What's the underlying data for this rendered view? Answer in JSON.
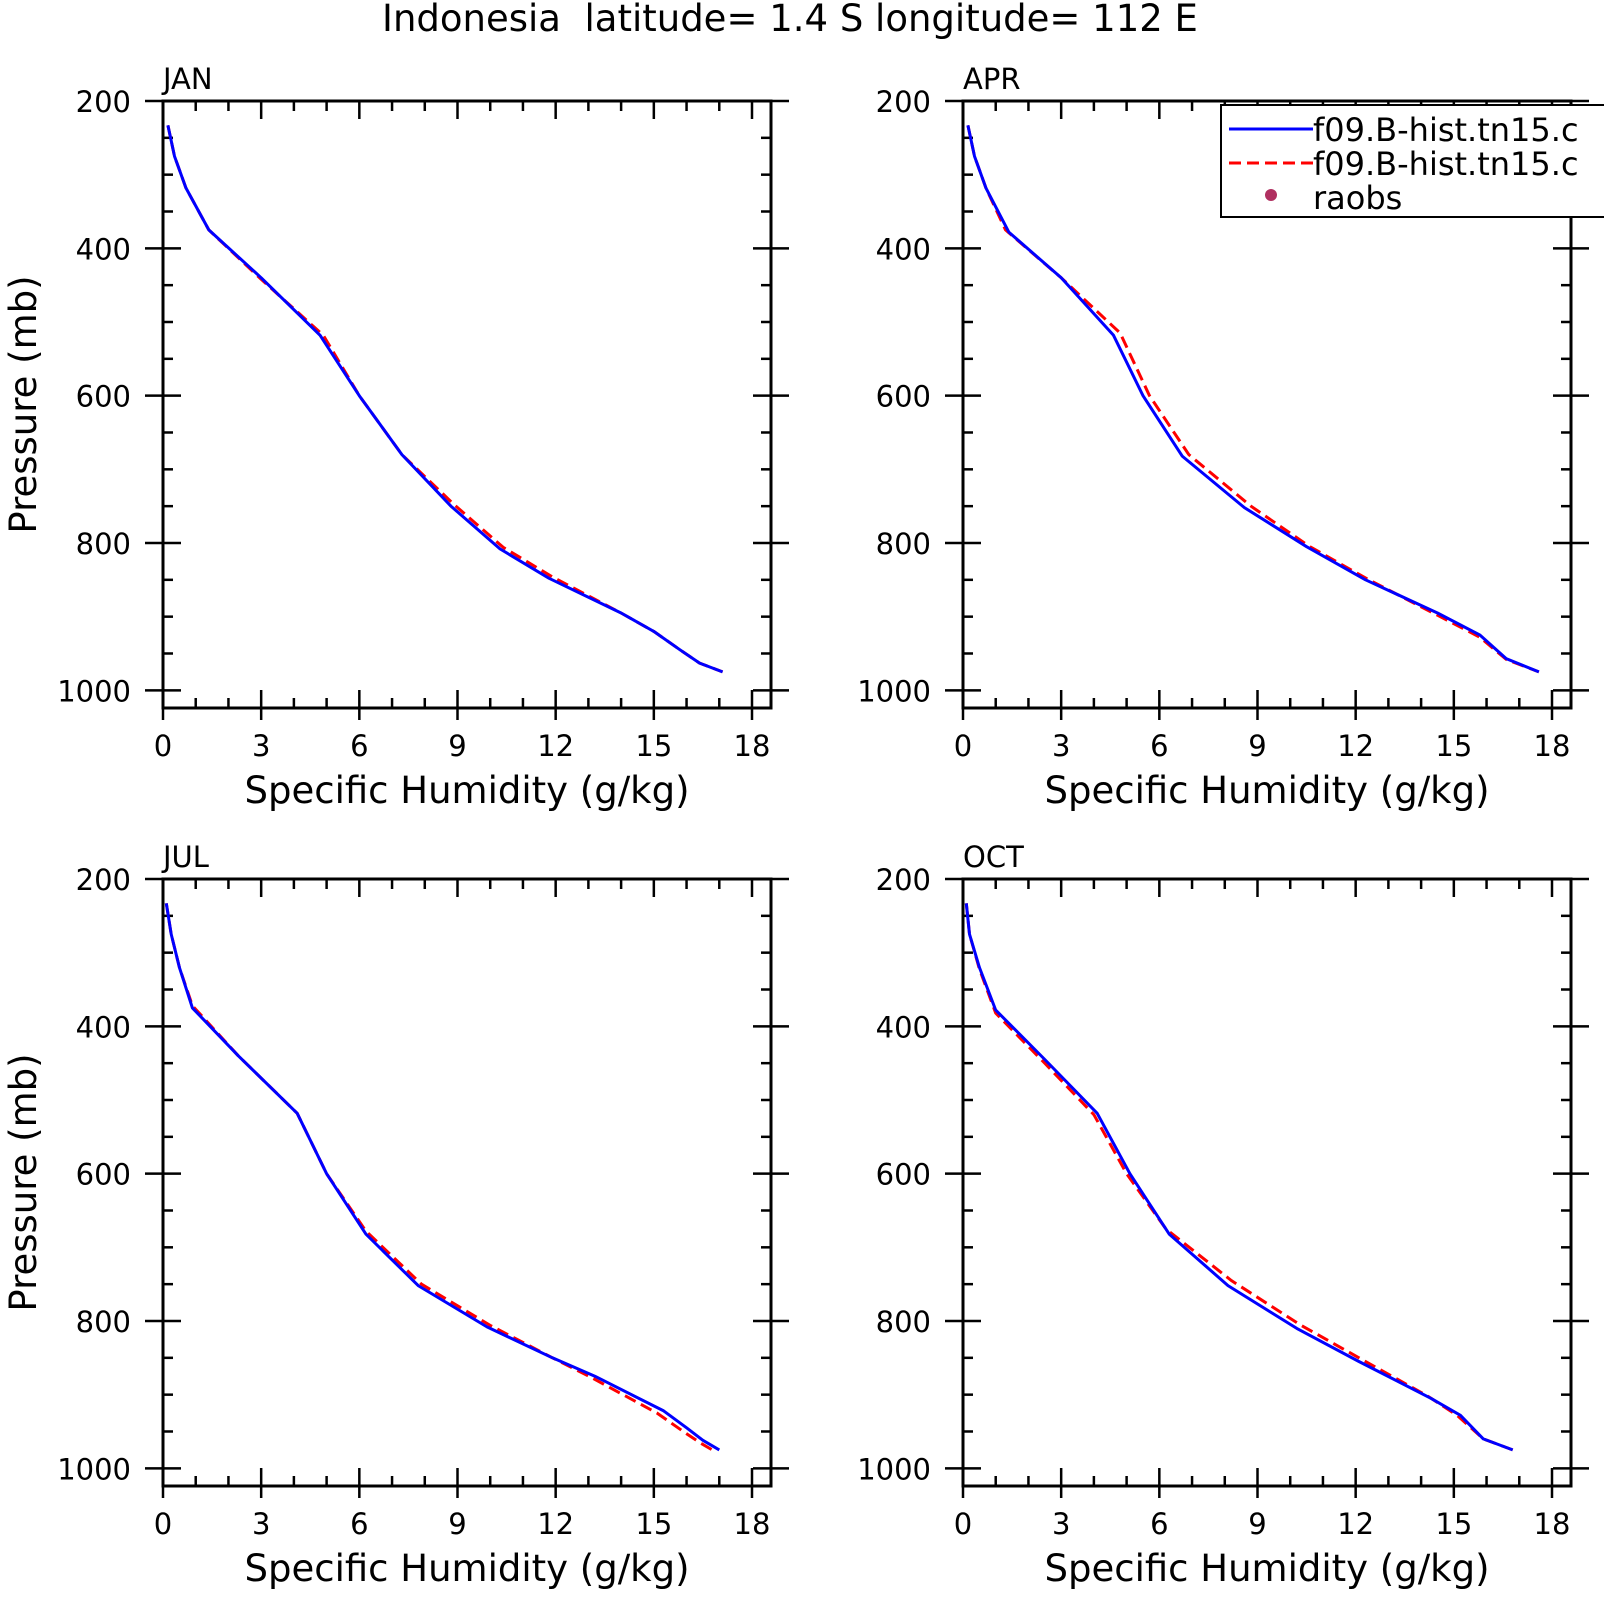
{
  "figure": {
    "title": "Indonesia  latitude= 1.4 S longitude= 112 E"
  },
  "legend": {
    "entries": [
      {
        "label": "f09.B-hist.tn15.c",
        "color": "#0000ff",
        "style": "solid"
      },
      {
        "label": "f09.B-hist.tn15.c",
        "color": "#ff0000",
        "style": "dashed"
      },
      {
        "label": "raobs",
        "color": "#b03060",
        "style": "marker"
      }
    ]
  },
  "chart_data": [
    {
      "type": "line",
      "panel_label": "JAN",
      "xlabel": "Specific Humidity (g/kg)",
      "ylabel": "Pressure (mb)",
      "xlim": [
        0,
        18
      ],
      "ylim": [
        1000,
        200
      ],
      "y_reversed": true,
      "xticks": [
        "0",
        "3",
        "6",
        "9",
        "12",
        "15",
        "18"
      ],
      "yticks": [
        "200",
        "400",
        "600",
        "800",
        "1000"
      ],
      "grid": false,
      "series": [
        {
          "name": "f09.B-hist.tn15.c",
          "color": "#0000ff",
          "style": "solid",
          "x": [
            0.15,
            0.35,
            0.7,
            1.4,
            3.0,
            4.8,
            6.0,
            7.3,
            8.8,
            10.3,
            11.8,
            14.0,
            15.0,
            15.8,
            16.4,
            17.1
          ],
          "y": [
            233,
            275,
            318,
            375,
            440,
            518,
            600,
            680,
            750,
            808,
            848,
            895,
            920,
            945,
            963,
            975
          ]
        },
        {
          "name": "f09.B-hist.tn15.c",
          "color": "#ff0000",
          "style": "dashed",
          "x": [
            0.15,
            0.35,
            0.7,
            1.4,
            3.0,
            4.9,
            6.0,
            7.3,
            8.9,
            10.4,
            11.9,
            14.0,
            15.0,
            15.8,
            16.4,
            17.1
          ],
          "y": [
            233,
            275,
            318,
            375,
            442,
            518,
            600,
            680,
            748,
            806,
            846,
            895,
            920,
            945,
            963,
            975
          ]
        }
      ]
    },
    {
      "type": "line",
      "panel_label": "APR",
      "xlabel": "Specific Humidity (g/kg)",
      "ylabel": "",
      "xlim": [
        0,
        18
      ],
      "ylim": [
        1000,
        200
      ],
      "y_reversed": true,
      "xticks": [
        "0",
        "3",
        "6",
        "9",
        "12",
        "15",
        "18"
      ],
      "yticks": [
        "200",
        "400",
        "600",
        "800",
        "1000"
      ],
      "grid": false,
      "series": [
        {
          "name": "f09.B-hist.tn15.c",
          "color": "#0000ff",
          "style": "solid",
          "x": [
            0.15,
            0.35,
            0.7,
            1.4,
            3.0,
            4.6,
            5.5,
            6.7,
            8.6,
            10.5,
            12.3,
            14.5,
            15.8,
            16.6,
            17.6
          ],
          "y": [
            233,
            275,
            318,
            378,
            440,
            518,
            600,
            682,
            752,
            805,
            850,
            895,
            925,
            957,
            975
          ]
        },
        {
          "name": "f09.B-hist.tn15.c",
          "color": "#ff0000",
          "style": "dashed",
          "x": [
            0.15,
            0.35,
            0.7,
            1.3,
            3.0,
            4.8,
            5.7,
            6.9,
            8.8,
            10.6,
            12.4,
            14.5,
            15.8,
            16.6,
            17.6
          ],
          "y": [
            233,
            275,
            318,
            375,
            440,
            515,
            600,
            680,
            750,
            805,
            850,
            898,
            928,
            958,
            975
          ]
        }
      ]
    },
    {
      "type": "line",
      "panel_label": "JUL",
      "xlabel": "Specific Humidity (g/kg)",
      "ylabel": "Pressure (mb)",
      "xlim": [
        0,
        18
      ],
      "ylim": [
        1000,
        200
      ],
      "y_reversed": true,
      "xticks": [
        "0",
        "3",
        "6",
        "9",
        "12",
        "15",
        "18"
      ],
      "yticks": [
        "200",
        "400",
        "600",
        "800",
        "1000"
      ],
      "grid": false,
      "series": [
        {
          "name": "f09.B-hist.tn15.c",
          "color": "#0000ff",
          "style": "solid",
          "x": [
            0.1,
            0.25,
            0.5,
            0.9,
            2.3,
            4.1,
            5.0,
            6.2,
            7.8,
            9.9,
            11.9,
            13.2,
            15.3,
            16.0,
            16.5,
            17.0
          ],
          "y": [
            233,
            275,
            320,
            375,
            440,
            518,
            600,
            682,
            752,
            808,
            850,
            875,
            922,
            945,
            962,
            975
          ]
        },
        {
          "name": "f09.B-hist.tn15.c",
          "color": "#ff0000",
          "style": "dashed",
          "x": [
            0.1,
            0.25,
            0.5,
            0.9,
            2.3,
            4.1,
            5.0,
            6.2,
            7.9,
            10.0,
            11.9,
            13.1,
            15.1,
            15.9,
            16.4,
            16.9
          ],
          "y": [
            233,
            275,
            320,
            372,
            440,
            518,
            600,
            678,
            750,
            806,
            850,
            877,
            925,
            950,
            965,
            978
          ]
        }
      ]
    },
    {
      "type": "line",
      "panel_label": "OCT",
      "xlabel": "Specific Humidity (g/kg)",
      "ylabel": "",
      "xlim": [
        0,
        18
      ],
      "ylim": [
        1000,
        200
      ],
      "y_reversed": true,
      "xticks": [
        "0",
        "3",
        "6",
        "9",
        "12",
        "15",
        "18"
      ],
      "yticks": [
        "200",
        "400",
        "600",
        "800",
        "1000"
      ],
      "grid": false,
      "series": [
        {
          "name": "f09.B-hist.tn15.c",
          "color": "#0000ff",
          "style": "solid",
          "x": [
            0.1,
            0.2,
            0.5,
            1.0,
            2.5,
            4.1,
            5.1,
            6.3,
            8.1,
            10.2,
            12.1,
            14.3,
            15.2,
            15.9,
            16.8
          ],
          "y": [
            233,
            275,
            320,
            378,
            445,
            518,
            600,
            682,
            752,
            810,
            855,
            905,
            928,
            960,
            975
          ]
        },
        {
          "name": "f09.B-hist.tn15.c",
          "color": "#ff0000",
          "style": "dashed",
          "x": [
            0.1,
            0.2,
            0.5,
            1.0,
            2.5,
            4.0,
            5.0,
            6.2,
            8.2,
            10.3,
            12.1,
            14.2,
            15.1,
            15.9,
            16.8
          ],
          "y": [
            233,
            275,
            322,
            382,
            450,
            520,
            600,
            675,
            745,
            805,
            850,
            902,
            928,
            960,
            975
          ]
        }
      ]
    }
  ]
}
